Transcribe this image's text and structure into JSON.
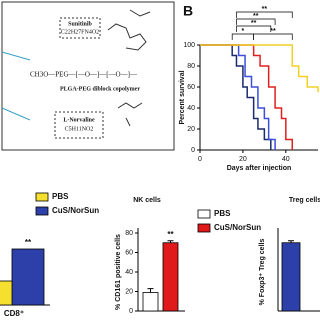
{
  "panel_label": "B",
  "diagram": {
    "sunitinib": "Sunitinib",
    "sunitinib_formula": "C22H27FN4O2",
    "polymer": "CH3O—PEG—[—O—]—[—O—]—",
    "polymer_name": "PLGA-PEG diblock copolymer",
    "norvaline": "L-Norvaline",
    "norvaline_formula": "C5H11NO2"
  },
  "chart_data": [
    {
      "type": "step",
      "ylabel": "Percent survival",
      "xlabel": "Days after injection",
      "xlim": [
        0,
        55
      ],
      "xticks": [
        0,
        20,
        40
      ],
      "ylim": [
        0,
        100
      ],
      "yticks": [
        0,
        20,
        40,
        60,
        80,
        100
      ],
      "annotations": [
        "**",
        "**",
        "**",
        "*",
        "**"
      ],
      "series": [
        {
          "color": "#1a2a6c",
          "x": [
            0,
            15,
            17,
            20,
            22,
            25,
            27,
            30,
            33
          ],
          "values": [
            100,
            90,
            80,
            60,
            50,
            30,
            20,
            10,
            0
          ]
        },
        {
          "color": "#3b4fd8",
          "x": [
            0,
            18,
            21,
            24,
            27,
            30,
            32,
            35
          ],
          "values": [
            100,
            90,
            70,
            60,
            40,
            30,
            10,
            0
          ]
        },
        {
          "color": "#e02020",
          "x": [
            0,
            25,
            28,
            32,
            35,
            38,
            40,
            43
          ],
          "values": [
            100,
            90,
            80,
            60,
            40,
            30,
            10,
            0
          ]
        },
        {
          "color": "#f2d024",
          "x": [
            0,
            43,
            46,
            50,
            55
          ],
          "values": [
            100,
            80,
            70,
            60,
            55
          ]
        }
      ]
    },
    {
      "type": "bar",
      "xlabel": "CD8⁺",
      "ylim": [
        0,
        100
      ],
      "annotation": "**",
      "series": [
        {
          "name": "PBS",
          "color": "#f5e030",
          "values": [
            30
          ]
        },
        {
          "name": "CuS/NorSun",
          "color": "#2d3fa8",
          "values": [
            70
          ]
        }
      ]
    },
    {
      "type": "bar",
      "title": "NK cells",
      "ylabel": "% CD161 positive cells",
      "ylim": [
        0,
        80
      ],
      "yticks": [
        0,
        20,
        40,
        60,
        80
      ],
      "annotation": "**",
      "series": [
        {
          "name": "PBS",
          "color": "#ffffff",
          "values": [
            19
          ],
          "errors": [
            4
          ]
        },
        {
          "name": "CuS/NorSun",
          "color": "#e01a1a",
          "values": [
            70
          ],
          "errors": [
            2
          ]
        }
      ]
    },
    {
      "type": "bar",
      "title": "Treg cells",
      "ylabel": "% Foxp3⁺ Treg cells",
      "ylim": [
        0,
        80
      ],
      "series": [
        {
          "color": "#2d3fa8",
          "values": [
            70
          ],
          "errors": [
            2
          ]
        }
      ]
    }
  ]
}
